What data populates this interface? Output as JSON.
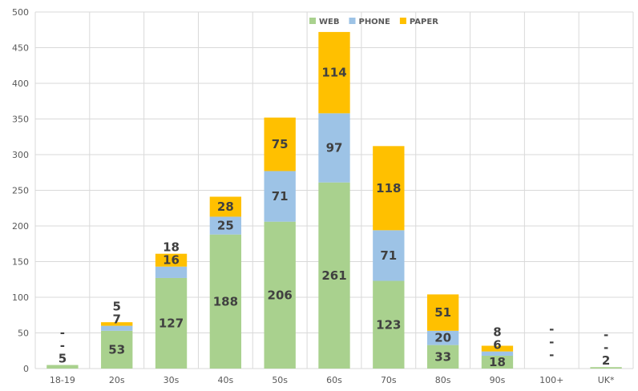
{
  "chart_data": {
    "type": "bar",
    "stacked": true,
    "title": "",
    "xlabel": "",
    "ylabel": "",
    "ylim": [
      0,
      500
    ],
    "yticks": [
      0,
      50,
      100,
      150,
      200,
      250,
      300,
      350,
      400,
      450,
      500
    ],
    "grid": true,
    "legend_position": "top-center",
    "categories": [
      "18-19",
      "20s",
      "30s",
      "40s",
      "50s",
      "60s",
      "70s",
      "80s",
      "90s",
      "100+",
      "UK*"
    ],
    "series": [
      {
        "name": "WEB",
        "color": "#a9d18e",
        "values": [
          5,
          53,
          127,
          188,
          206,
          261,
          123,
          33,
          18,
          0,
          2
        ],
        "labels": [
          "5",
          "53",
          "127",
          "188",
          "206",
          "261",
          "123",
          "33",
          "18",
          "-",
          "2"
        ]
      },
      {
        "name": "PHONE",
        "color": "#9dc3e6",
        "values": [
          0,
          7,
          16,
          25,
          71,
          97,
          71,
          20,
          6,
          0,
          0
        ],
        "labels": [
          "-",
          "7",
          "16",
          "25",
          "71",
          "97",
          "71",
          "20",
          "6",
          "-",
          "-"
        ]
      },
      {
        "name": "PAPER",
        "color": "#ffc000",
        "values": [
          0,
          5,
          18,
          28,
          75,
          114,
          118,
          51,
          8,
          0,
          0
        ],
        "labels": [
          "-",
          "5",
          "18",
          "28",
          "75",
          "114",
          "118",
          "51",
          "8",
          "-",
          "-"
        ]
      }
    ]
  }
}
